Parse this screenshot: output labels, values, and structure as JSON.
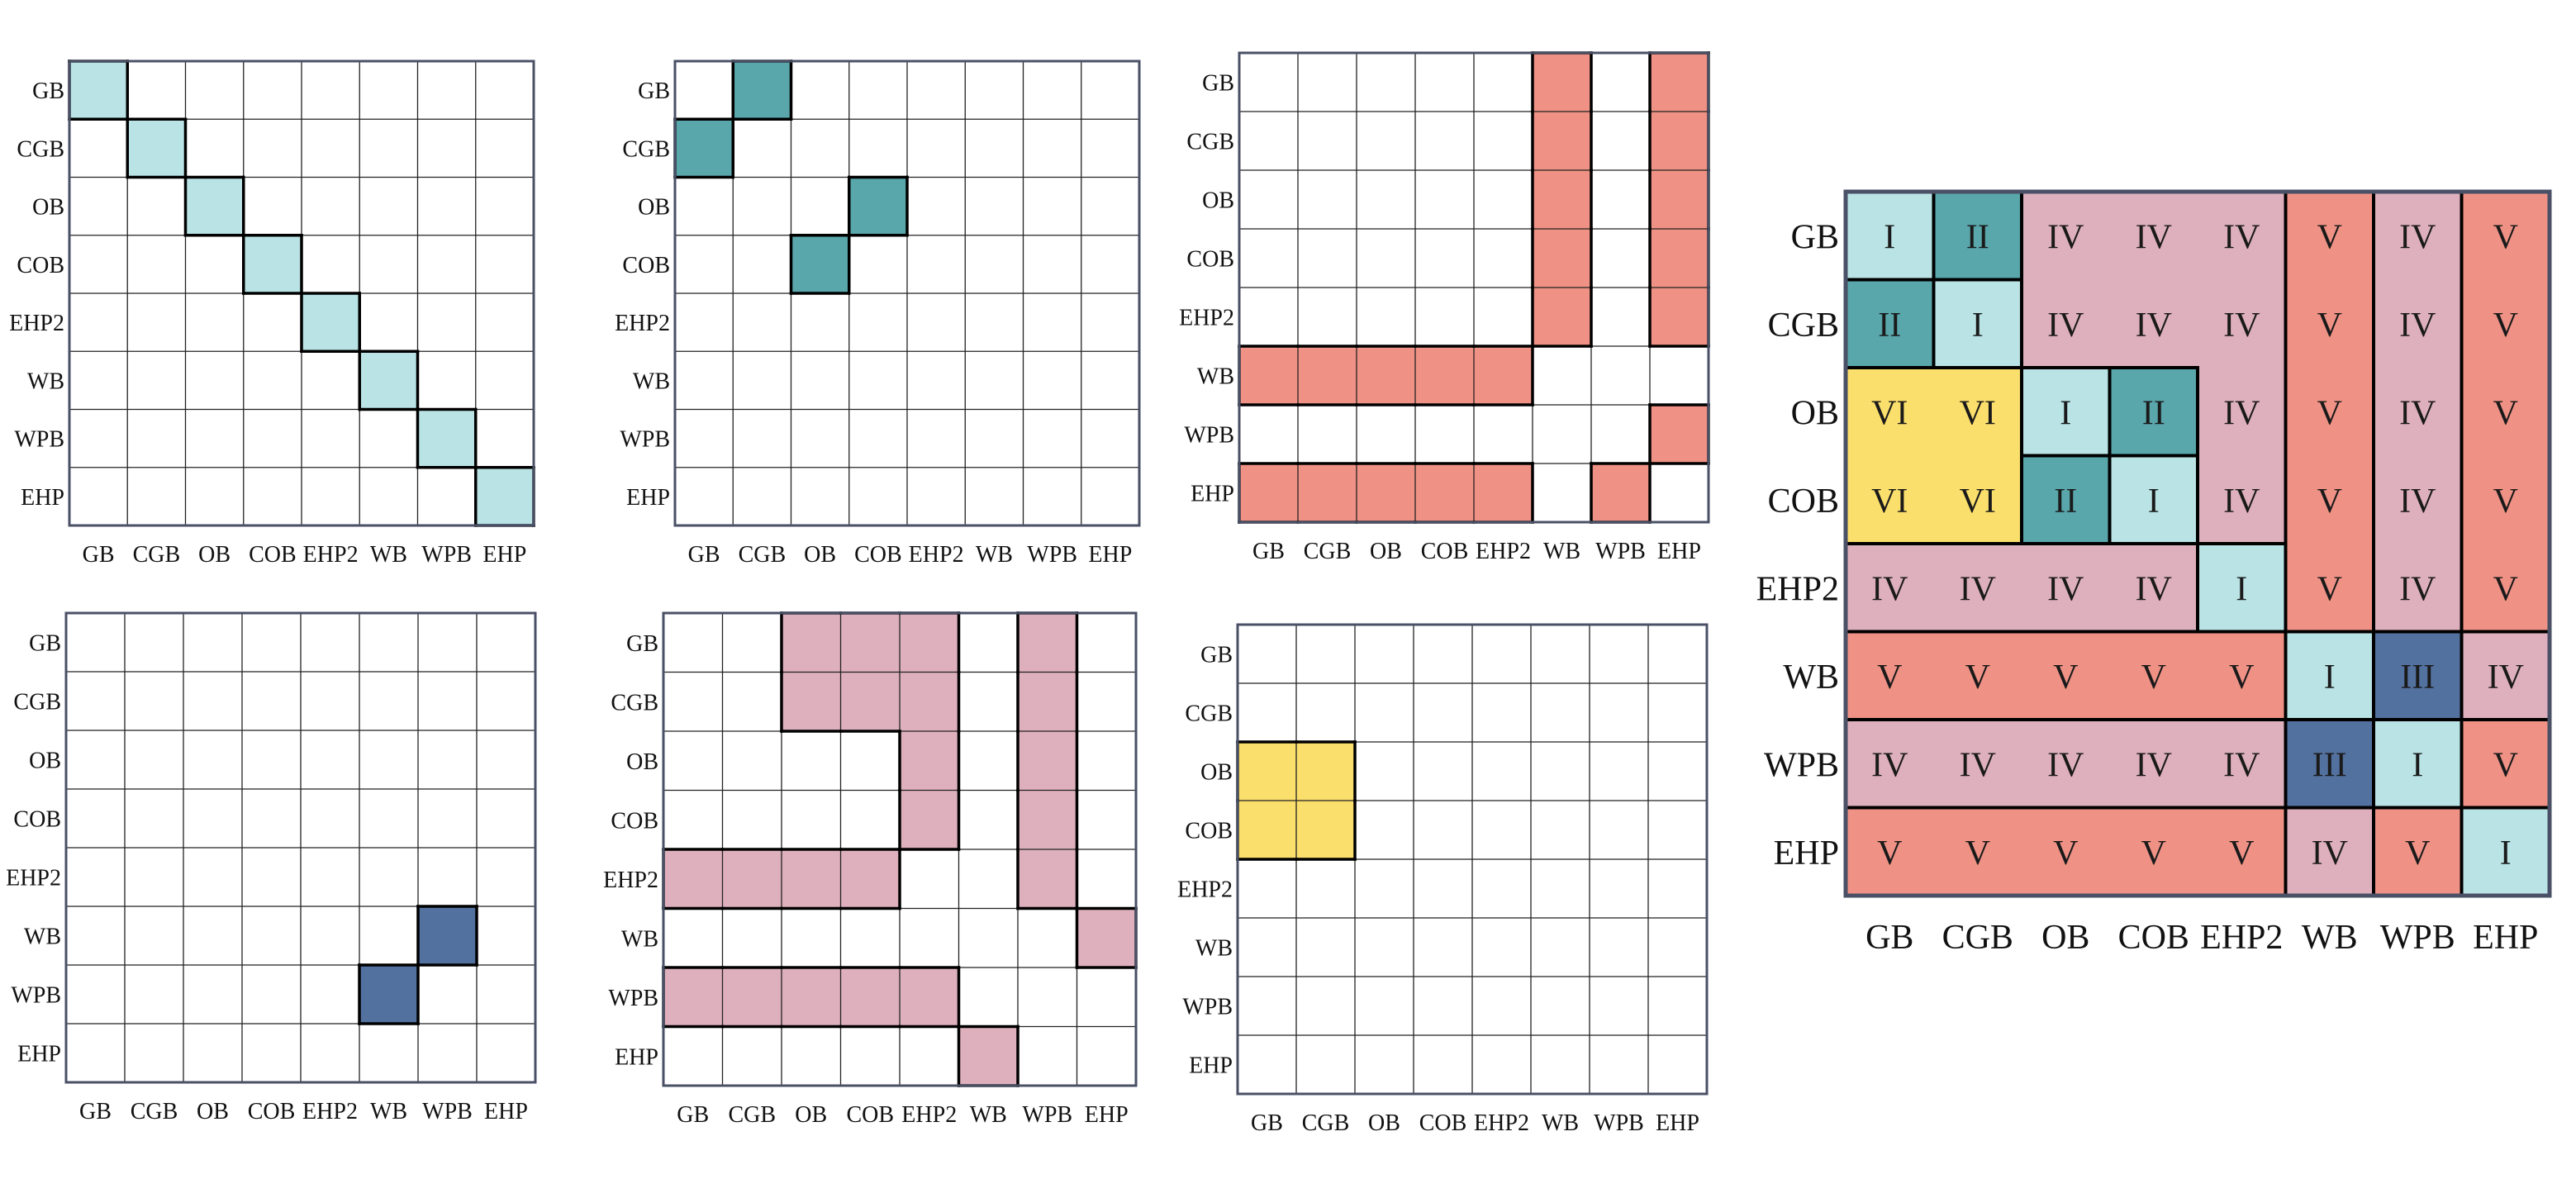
{
  "labels": [
    "GB",
    "CGB",
    "OB",
    "COB",
    "EHP2",
    "WB",
    "WPB",
    "EHP"
  ],
  "colors": {
    "type_I": "#b9e3e5",
    "type_II": "#59a6ab",
    "type_III": "#53719f",
    "type_IV": "#deb0bd",
    "type_V": "#ef9285",
    "type_VI": "#fbdf6c",
    "grid_line": "#000000",
    "frame": "#4a5066"
  },
  "panels": [
    {
      "id": "type-I",
      "fill": "type_I",
      "cells": [
        [
          0,
          0
        ],
        [
          1,
          1
        ],
        [
          2,
          2
        ],
        [
          3,
          3
        ],
        [
          4,
          4
        ],
        [
          5,
          5
        ],
        [
          6,
          6
        ],
        [
          7,
          7
        ]
      ]
    },
    {
      "id": "type-II",
      "fill": "type_II",
      "cells": [
        [
          0,
          1
        ],
        [
          1,
          0
        ],
        [
          2,
          3
        ],
        [
          3,
          2
        ]
      ]
    },
    {
      "id": "type-V",
      "fill": "type_V",
      "cells": [
        [
          0,
          5
        ],
        [
          0,
          7
        ],
        [
          1,
          5
        ],
        [
          1,
          7
        ],
        [
          2,
          5
        ],
        [
          2,
          7
        ],
        [
          3,
          5
        ],
        [
          3,
          7
        ],
        [
          4,
          5
        ],
        [
          4,
          7
        ],
        [
          5,
          0
        ],
        [
          5,
          1
        ],
        [
          5,
          2
        ],
        [
          5,
          3
        ],
        [
          5,
          4
        ],
        [
          6,
          7
        ],
        [
          7,
          0
        ],
        [
          7,
          1
        ],
        [
          7,
          2
        ],
        [
          7,
          3
        ],
        [
          7,
          4
        ],
        [
          7,
          6
        ]
      ]
    },
    {
      "id": "type-III",
      "fill": "type_III",
      "cells": [
        [
          5,
          6
        ],
        [
          6,
          5
        ]
      ]
    },
    {
      "id": "type-IV",
      "fill": "type_IV",
      "cells": [
        [
          0,
          2
        ],
        [
          0,
          3
        ],
        [
          0,
          4
        ],
        [
          0,
          6
        ],
        [
          1,
          2
        ],
        [
          1,
          3
        ],
        [
          1,
          4
        ],
        [
          1,
          6
        ],
        [
          2,
          4
        ],
        [
          2,
          6
        ],
        [
          3,
          4
        ],
        [
          3,
          6
        ],
        [
          4,
          0
        ],
        [
          4,
          1
        ],
        [
          4,
          2
        ],
        [
          4,
          3
        ],
        [
          4,
          6
        ],
        [
          5,
          7
        ],
        [
          6,
          0
        ],
        [
          6,
          1
        ],
        [
          6,
          2
        ],
        [
          6,
          3
        ],
        [
          6,
          4
        ],
        [
          7,
          5
        ]
      ]
    },
    {
      "id": "type-VI",
      "fill": "type_VI",
      "cells": [
        [
          2,
          0
        ],
        [
          2,
          1
        ],
        [
          3,
          0
        ],
        [
          3,
          1
        ]
      ]
    }
  ],
  "combined": {
    "rows": [
      [
        "I",
        "II",
        "IV",
        "IV",
        "IV",
        "V",
        "IV",
        "V"
      ],
      [
        "II",
        "I",
        "IV",
        "IV",
        "IV",
        "V",
        "IV",
        "V"
      ],
      [
        "VI",
        "VI",
        "I",
        "II",
        "IV",
        "V",
        "IV",
        "V"
      ],
      [
        "VI",
        "VI",
        "II",
        "I",
        "IV",
        "V",
        "IV",
        "V"
      ],
      [
        "IV",
        "IV",
        "IV",
        "IV",
        "I",
        "V",
        "IV",
        "V"
      ],
      [
        "V",
        "V",
        "V",
        "V",
        "V",
        "I",
        "III",
        "IV"
      ],
      [
        "IV",
        "IV",
        "IV",
        "IV",
        "IV",
        "III",
        "I",
        "V"
      ],
      [
        "V",
        "V",
        "V",
        "V",
        "V",
        "IV",
        "V",
        "I"
      ]
    ]
  }
}
